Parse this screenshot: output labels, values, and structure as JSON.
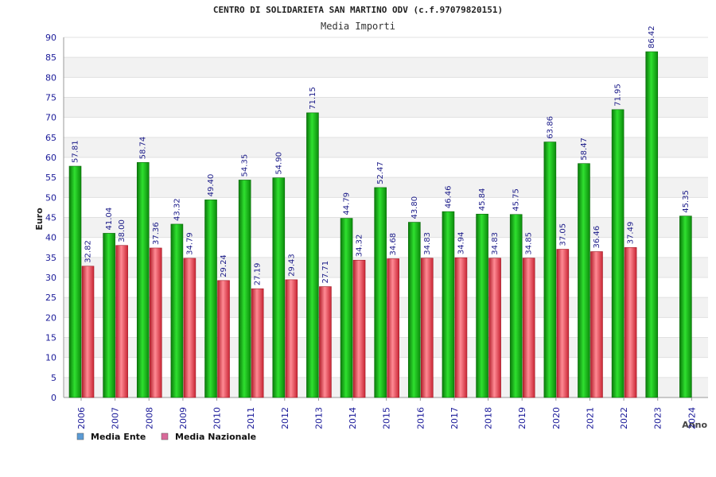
{
  "chart_data": {
    "type": "bar",
    "title": "CENTRO DI SOLIDARIETA SAN MARTINO ODV (c.f.97079820151)",
    "subtitle": "Media Importi",
    "ylabel": "Euro",
    "xlabel": "Anno",
    "ylim": [
      0,
      90
    ],
    "ytick_step": 5,
    "grid": true,
    "legend_position": "bottom-left",
    "categories": [
      "2006",
      "2007",
      "2008",
      "2009",
      "2010",
      "2011",
      "2012",
      "2013",
      "2014",
      "2015",
      "2016",
      "2017",
      "2018",
      "2019",
      "2020",
      "2021",
      "2022",
      "2023",
      "2024"
    ],
    "series": [
      {
        "name": "Media Ente",
        "legend_color": "#5b9bd5",
        "bar_color": "#11aa11",
        "values": [
          57.81,
          41.04,
          58.74,
          43.32,
          49.4,
          54.35,
          54.9,
          71.15,
          44.79,
          52.47,
          43.8,
          46.46,
          45.84,
          45.75,
          63.86,
          58.47,
          71.95,
          86.42,
          45.35
        ]
      },
      {
        "name": "Media Nazionale",
        "legend_color": "#d96a9a",
        "bar_color": "#dd3344",
        "values": [
          32.82,
          38.0,
          37.36,
          34.79,
          29.24,
          27.19,
          29.43,
          27.71,
          34.32,
          34.68,
          34.83,
          34.94,
          34.83,
          34.85,
          37.05,
          36.46,
          37.49,
          null,
          null
        ]
      }
    ]
  }
}
